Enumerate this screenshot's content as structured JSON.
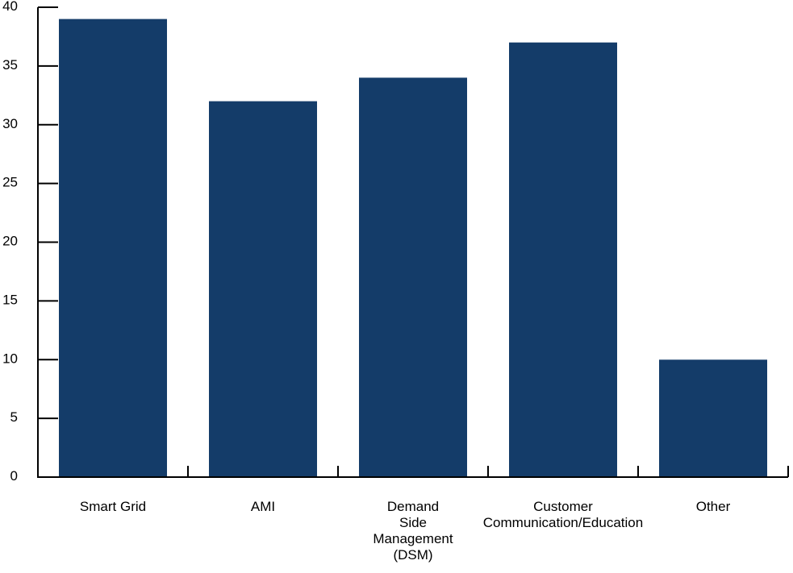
{
  "chart_data": {
    "type": "bar",
    "categories": [
      [
        "Smart Grid"
      ],
      [
        "AMI"
      ],
      [
        "Demand",
        "Side",
        "Management",
        "(DSM)"
      ],
      [
        "Customer",
        "Communication/Education"
      ],
      [
        "Other"
      ]
    ],
    "values": [
      39,
      32,
      34,
      37,
      10
    ],
    "yticks": [
      "0",
      "5",
      "10",
      "15",
      "20",
      "25",
      "30",
      "35",
      "40"
    ],
    "ylim": [
      0,
      40
    ],
    "title": "",
    "xlabel": "",
    "ylabel": "",
    "grid": false,
    "bar_color": "#143c69",
    "axis_color": "#000000"
  }
}
